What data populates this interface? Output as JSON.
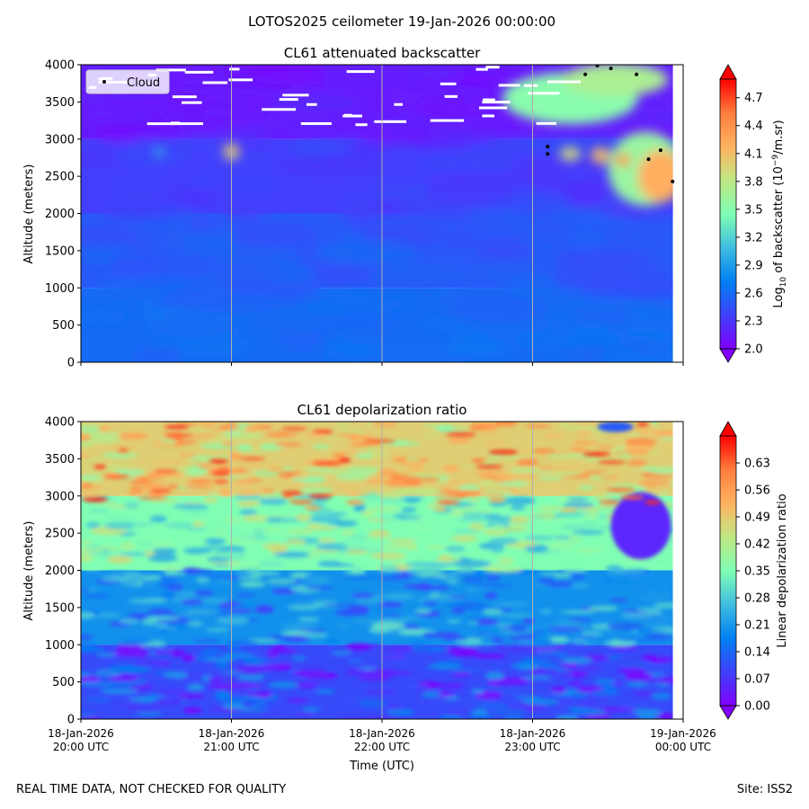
{
  "figure": {
    "title": "LOTOS2025 ceilometer 19-Jan-2026 00:00:00",
    "footer_left": "REAL TIME DATA, NOT CHECKED FOR QUALITY",
    "footer_right": "Site: ISS2"
  },
  "chart_data": [
    {
      "type": "heatmap",
      "title": "CL61 attenuated backscatter",
      "xlabel": "Time (UTC)",
      "ylabel": "Altitude (meters)",
      "ylim": [
        0,
        4000
      ],
      "yticks": [
        0,
        500,
        1000,
        1500,
        2000,
        2500,
        3000,
        3500,
        4000
      ],
      "xlim_hours": [
        20,
        24
      ],
      "xticks_hours": [
        20,
        21,
        22,
        23,
        24
      ],
      "grid": "vertical lines at each hour",
      "legend": {
        "label": "Cloud",
        "placement": "upper-left"
      },
      "colorbar": {
        "label": "Log10 of backscatter (10^-9/m.sr)",
        "label_main": "Log",
        "label_sub": "10",
        "label_rest": " of backscatter (10",
        "label_sup": "−9",
        "label_end": "/m.sr)",
        "range": [
          2.0,
          4.9
        ],
        "ticks": [
          "2.0",
          "2.3",
          "2.6",
          "2.9",
          "3.2",
          "3.5",
          "3.8",
          "4.1",
          "4.4",
          "4.7"
        ],
        "colormap": "rainbow"
      },
      "background": [
        {
          "alt_low": 0,
          "alt_high": 1000,
          "value": 2.6
        },
        {
          "alt_low": 1000,
          "alt_high": 2000,
          "value": 2.5
        },
        {
          "alt_low": 2000,
          "alt_high": 3000,
          "value": 2.35
        },
        {
          "alt_low": 3000,
          "alt_high": 4000,
          "value": 2.15
        }
      ],
      "features": [
        {
          "t": 23.6,
          "alt": 3880,
          "dt": 0.12,
          "dalt": 100,
          "value": 4.9
        },
        {
          "t": 23.25,
          "alt": 3550,
          "dt": 0.45,
          "dalt": 350,
          "value": 3.5
        },
        {
          "t": 23.55,
          "alt": 3800,
          "dt": 0.35,
          "dalt": 220,
          "value": 3.7
        },
        {
          "t": 23.75,
          "alt": 2600,
          "dt": 0.25,
          "dalt": 500,
          "value": 3.6
        },
        {
          "t": 23.85,
          "alt": 2500,
          "dt": 0.15,
          "dalt": 350,
          "value": 4.2
        },
        {
          "t": 23.25,
          "alt": 2800,
          "dt": 0.07,
          "dalt": 90,
          "value": 3.9
        },
        {
          "t": 23.45,
          "alt": 2780,
          "dt": 0.06,
          "dalt": 110,
          "value": 4.1
        },
        {
          "t": 23.6,
          "alt": 2720,
          "dt": 0.05,
          "dalt": 80,
          "value": 4.5
        },
        {
          "t": 21.0,
          "alt": 2830,
          "dt": 0.05,
          "dalt": 110,
          "value": 4.0
        },
        {
          "t": 20.52,
          "alt": 2820,
          "dt": 0.04,
          "dalt": 60,
          "value": 3.0
        }
      ],
      "cloud_points": [
        {
          "t": 23.1,
          "alt": 2900
        },
        {
          "t": 23.1,
          "alt": 2800
        },
        {
          "t": 23.35,
          "alt": 3870
        },
        {
          "t": 23.43,
          "alt": 3990
        },
        {
          "t": 23.52,
          "alt": 3950
        },
        {
          "t": 23.69,
          "alt": 3870
        },
        {
          "t": 23.77,
          "alt": 2730
        },
        {
          "t": 23.85,
          "alt": 2850
        },
        {
          "t": 23.93,
          "alt": 2430
        }
      ]
    },
    {
      "type": "heatmap",
      "title": "CL61 depolarization ratio",
      "xlabel": "Time (UTC)",
      "ylabel": "Altitude (meters)",
      "ylim": [
        0,
        4000
      ],
      "yticks": [
        0,
        500,
        1000,
        1500,
        2000,
        2500,
        3000,
        3500,
        4000
      ],
      "xlim_hours": [
        20,
        24
      ],
      "xticks_hours": [
        20,
        21,
        22,
        23,
        24
      ],
      "xtick_labels": [
        [
          "18-Jan-2026",
          "20:00 UTC"
        ],
        [
          "18-Jan-2026",
          "21:00 UTC"
        ],
        [
          "18-Jan-2026",
          "22:00 UTC"
        ],
        [
          "18-Jan-2026",
          "23:00 UTC"
        ],
        [
          "19-Jan-2026",
          "00:00 UTC"
        ]
      ],
      "colorbar": {
        "label": "Linear depolarization ratio",
        "range": [
          0.0,
          0.7
        ],
        "ticks": [
          "0.00",
          "0.07",
          "0.14",
          "0.21",
          "0.28",
          "0.35",
          "0.42",
          "0.49",
          "0.56",
          "0.63"
        ],
        "colormap": "rainbow"
      },
      "background": [
        {
          "alt_low": 0,
          "alt_high": 1000,
          "value": 0.1
        },
        {
          "alt_low": 1000,
          "alt_high": 2000,
          "value": 0.2
        },
        {
          "alt_low": 2000,
          "alt_high": 3000,
          "value": 0.35
        },
        {
          "alt_low": 3000,
          "alt_high": 4000,
          "value": 0.48
        }
      ],
      "features": [
        {
          "t": 23.72,
          "alt": 2600,
          "dt": 0.2,
          "dalt": 450,
          "value": 0.05
        },
        {
          "t": 23.55,
          "alt": 3930,
          "dt": 0.12,
          "dalt": 70,
          "value": 0.12
        }
      ]
    }
  ]
}
